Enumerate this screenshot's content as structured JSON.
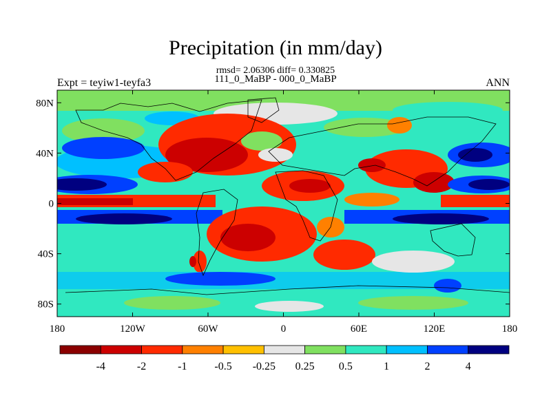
{
  "title": "Precipitation (in mm/day)",
  "stats": "rmsd= 2.06306  diff= 0.330825",
  "subtitle": "111_0_MaBP - 000_0_MaBP",
  "left_label": "Expt = teyiw1-teyfa3",
  "right_label": "ANN",
  "map": {
    "lon_ticks": [
      {
        "lon": -180,
        "label": "180"
      },
      {
        "lon": -120,
        "label": "120W"
      },
      {
        "lon": -60,
        "label": "60W"
      },
      {
        "lon": 0,
        "label": "0"
      },
      {
        "lon": 60,
        "label": "60E"
      },
      {
        "lon": 120,
        "label": "120E"
      },
      {
        "lon": 180,
        "label": "180"
      }
    ],
    "lat_ticks": [
      {
        "lat": 80,
        "label": "80N"
      },
      {
        "lat": 40,
        "label": "40N"
      },
      {
        "lat": 0,
        "label": "0"
      },
      {
        "lat": -40,
        "label": "40S"
      },
      {
        "lat": -80,
        "label": "80S"
      }
    ],
    "lon_range": [
      -180,
      180
    ],
    "lat_range": [
      -90,
      90
    ]
  },
  "colorbar": {
    "colors": [
      "#8b0000",
      "#cc0000",
      "#ff2a00",
      "#ff8000",
      "#ffc000",
      "#e6e6e6",
      "#80e060",
      "#30e8c0",
      "#00c0ff",
      "#0040ff",
      "#000080"
    ],
    "levels": [
      "-4",
      "-2",
      "-1",
      "-0.5",
      "-0.25",
      "0.25",
      "0.5",
      "1",
      "2",
      "4"
    ]
  }
}
